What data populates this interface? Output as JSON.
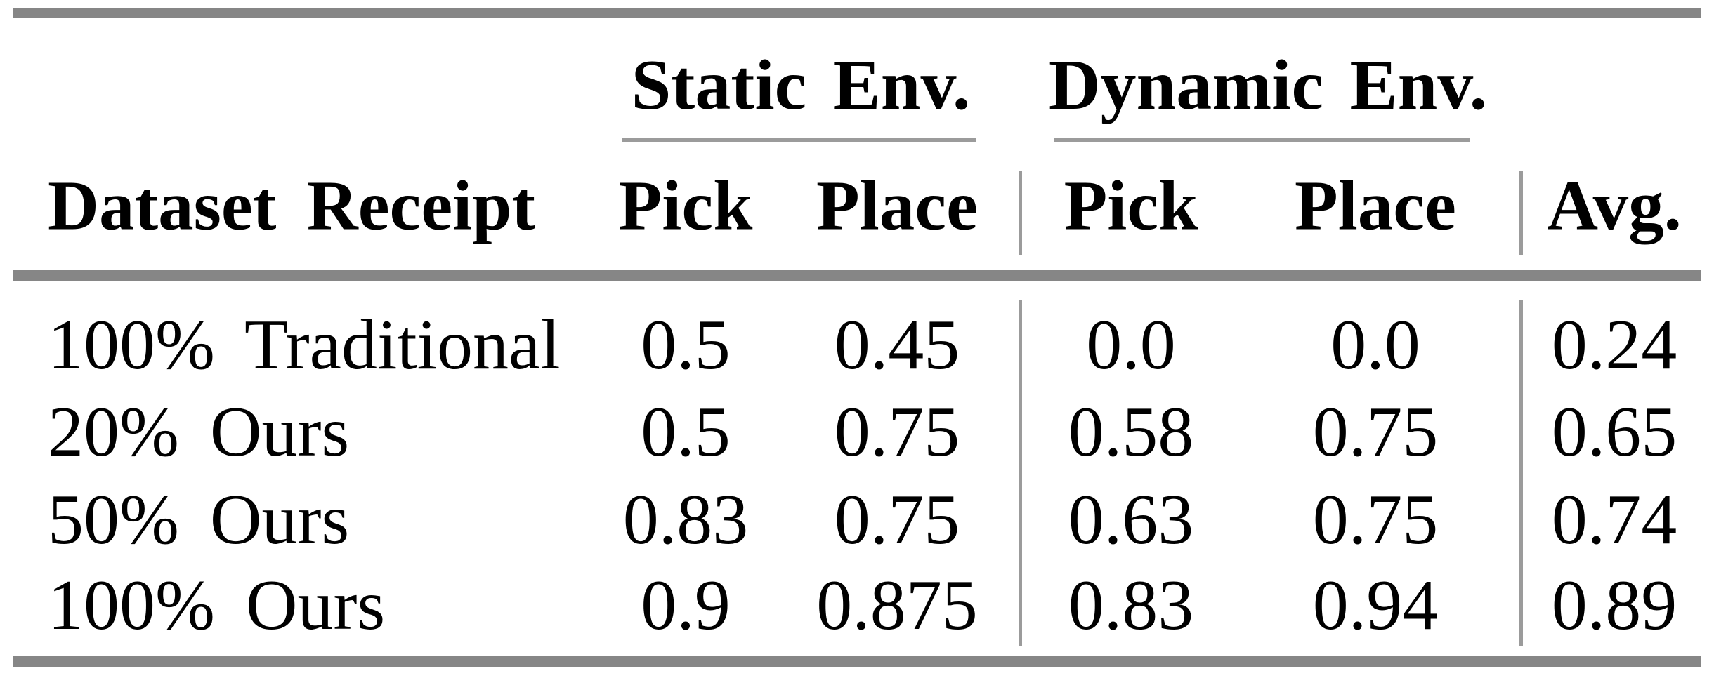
{
  "table": {
    "groups": [
      "Static Env.",
      "Dynamic Env."
    ],
    "headers": [
      "Dataset Receipt",
      "Pick",
      "Place",
      "Pick",
      "Place",
      "Avg."
    ],
    "rows": [
      {
        "label": "100% Traditional",
        "values": [
          "0.5",
          "0.45",
          "0.0",
          "0.0",
          "0.24"
        ]
      },
      {
        "label": "20% Ours",
        "values": [
          "0.5",
          "0.75",
          "0.58",
          "0.75",
          "0.65"
        ]
      },
      {
        "label": "50% Ours",
        "values": [
          "0.83",
          "0.75",
          "0.63",
          "0.75",
          "0.74"
        ]
      },
      {
        "label": "100% Ours",
        "values": [
          "0.9",
          "0.875",
          "0.83",
          "0.94",
          "0.89"
        ]
      }
    ]
  },
  "colors": {
    "rule_thick": "#868686",
    "rule_thin": "#9b9b9b",
    "text": "#000000",
    "background": "#ffffff"
  },
  "chart_data": {
    "type": "table",
    "column_groups": [
      {
        "label": "Static Env.",
        "columns": [
          "Pick",
          "Place"
        ]
      },
      {
        "label": "Dynamic Env.",
        "columns": [
          "Pick",
          "Place"
        ]
      }
    ],
    "columns": [
      "Dataset Receipt",
      "Static Pick",
      "Static Place",
      "Dynamic Pick",
      "Dynamic Place",
      "Avg."
    ],
    "rows": [
      [
        "100% Traditional",
        0.5,
        0.45,
        0.0,
        0.0,
        0.24
      ],
      [
        "20% Ours",
        0.5,
        0.75,
        0.58,
        0.75,
        0.65
      ],
      [
        "50% Ours",
        0.83,
        0.75,
        0.63,
        0.75,
        0.74
      ],
      [
        "100% Ours",
        0.9,
        0.875,
        0.83,
        0.94,
        0.89
      ]
    ]
  }
}
